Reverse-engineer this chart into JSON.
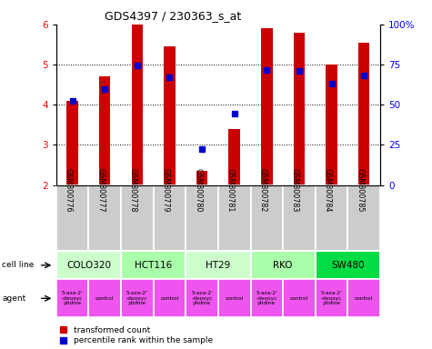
{
  "title": "GDS4397 / 230363_s_at",
  "samples": [
    "GSM800776",
    "GSM800777",
    "GSM800778",
    "GSM800779",
    "GSM800780",
    "GSM800781",
    "GSM800782",
    "GSM800783",
    "GSM800784",
    "GSM800785"
  ],
  "transformed_count": [
    4.1,
    4.7,
    6.0,
    5.45,
    2.35,
    3.4,
    5.9,
    5.8,
    5.0,
    5.55
  ],
  "percentile_rank": [
    4.1,
    4.4,
    4.97,
    4.68,
    2.9,
    3.78,
    4.87,
    4.85,
    4.52,
    4.72
  ],
  "ylim": [
    2.0,
    6.0
  ],
  "yticks_left": [
    2,
    3,
    4,
    5,
    6
  ],
  "yticks_right": [
    0,
    25,
    50,
    75,
    100
  ],
  "right_ylabels": [
    "0",
    "25",
    "50",
    "75",
    "100%"
  ],
  "bar_color": "#cc0000",
  "dot_color": "#0000cc",
  "cell_lines": [
    {
      "name": "COLO320",
      "start": 0,
      "end": 2,
      "color": "#ccffcc"
    },
    {
      "name": "HCT116",
      "start": 2,
      "end": 4,
      "color": "#aaffaa"
    },
    {
      "name": "HT29",
      "start": 4,
      "end": 6,
      "color": "#ccffcc"
    },
    {
      "name": "RKO",
      "start": 6,
      "end": 8,
      "color": "#aaffaa"
    },
    {
      "name": "SW480",
      "start": 8,
      "end": 10,
      "color": "#00dd44"
    }
  ],
  "agents": [
    {
      "name": "5-aza-2'\n-deoxyc\nytidine",
      "start": 0,
      "end": 1,
      "color": "#ee55ee"
    },
    {
      "name": "control",
      "start": 1,
      "end": 2,
      "color": "#ee55ee"
    },
    {
      "name": "5-aza-2'\n-deoxyc\nytidine",
      "start": 2,
      "end": 3,
      "color": "#ee55ee"
    },
    {
      "name": "control",
      "start": 3,
      "end": 4,
      "color": "#ee55ee"
    },
    {
      "name": "5-aza-2'\n-deoxyc\nytidine",
      "start": 4,
      "end": 5,
      "color": "#ee55ee"
    },
    {
      "name": "control",
      "start": 5,
      "end": 6,
      "color": "#ee55ee"
    },
    {
      "name": "5-aza-2'\n-deoxyc\nytidine",
      "start": 6,
      "end": 7,
      "color": "#ee55ee"
    },
    {
      "name": "control",
      "start": 7,
      "end": 8,
      "color": "#ee55ee"
    },
    {
      "name": "5-aza-2'\n-deoxyc\nytidine",
      "start": 8,
      "end": 9,
      "color": "#ee55ee"
    },
    {
      "name": "control",
      "start": 9,
      "end": 10,
      "color": "#ee55ee"
    }
  ],
  "gsm_bg_color": "#cccccc",
  "grid_color": "#000000",
  "grid_lines": [
    3,
    4,
    5
  ],
  "bar_width": 0.35
}
